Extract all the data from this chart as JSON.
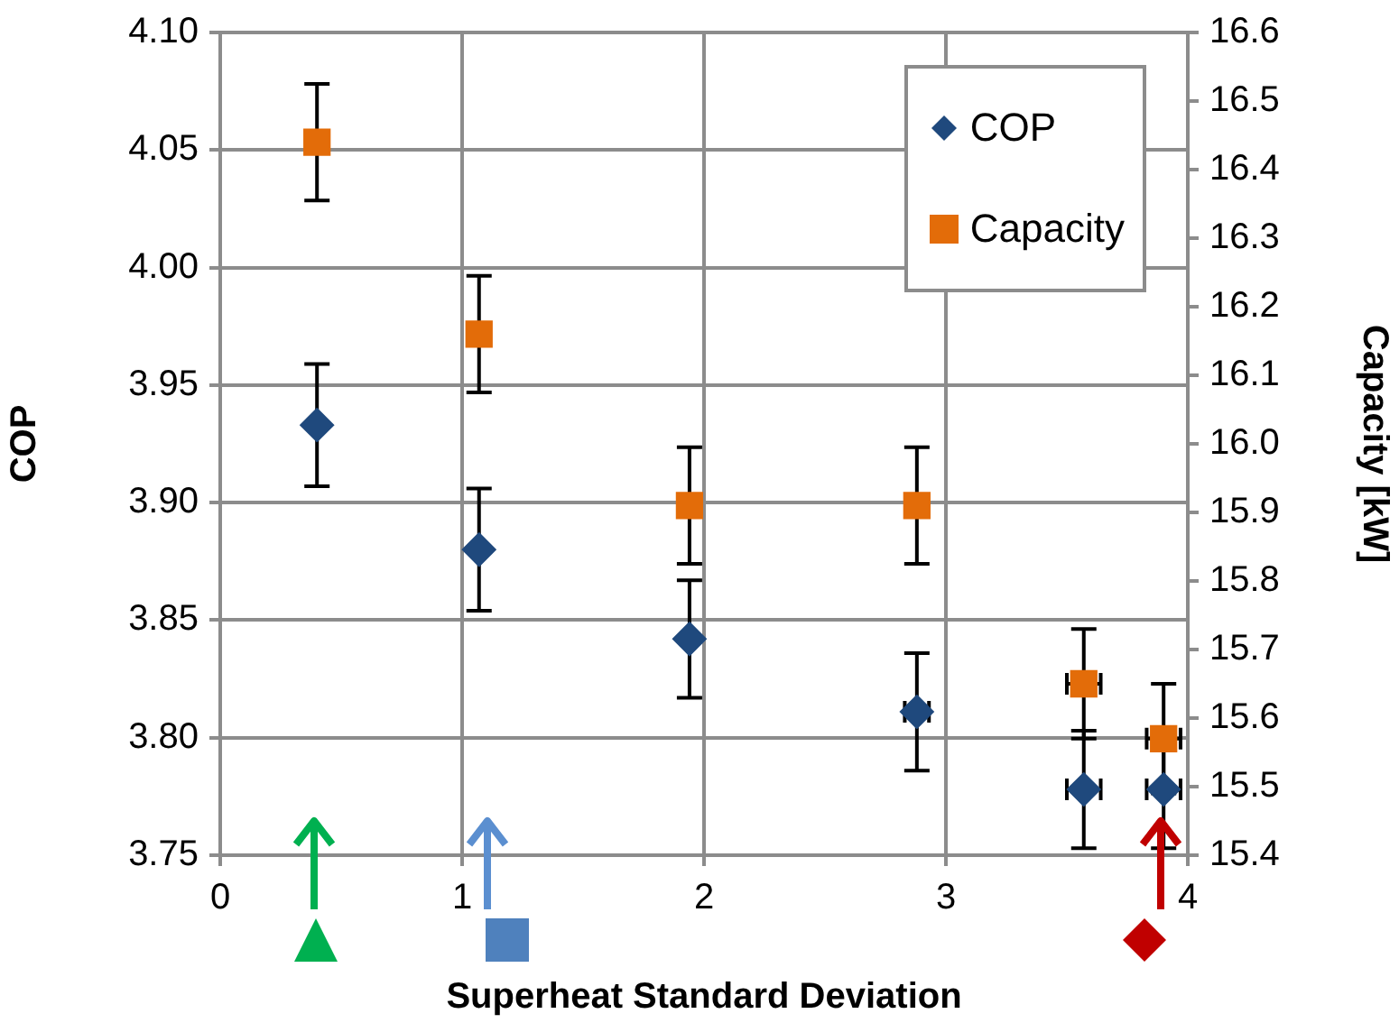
{
  "chart_data": {
    "type": "scatter",
    "xlabel": "Superheat Standard Deviation",
    "ylabel": "COP",
    "y2label": "Capacity [kW]",
    "x": [
      0.4,
      1.07,
      1.94,
      2.88,
      3.57,
      3.9
    ],
    "series": [
      {
        "name": "COP",
        "color": "#1f497d",
        "marker": "diamond",
        "values": [
          3.933,
          3.88,
          3.842,
          3.811,
          3.778,
          3.778
        ],
        "errors": [
          0.026,
          0.026,
          0.025,
          0.025,
          0.025,
          0.025
        ],
        "xerrors": [
          null,
          null,
          null,
          0.05,
          0.07,
          0.07
        ]
      },
      {
        "name": "Capacity",
        "color": "#e36c09",
        "marker": "square",
        "axis": "y2",
        "values": [
          16.44,
          16.16,
          15.91,
          15.91,
          15.65,
          15.57
        ],
        "errors": [
          0.085,
          0.085,
          0.085,
          0.085,
          0.08,
          0.08
        ],
        "xerrors": [
          null,
          null,
          null,
          null,
          0.07,
          0.07
        ]
      }
    ],
    "xlim": [
      0,
      4
    ],
    "xticks": [
      0,
      1,
      2,
      3,
      4
    ],
    "ylim": [
      3.75,
      4.1
    ],
    "yticks": [
      {
        "value": 3.75,
        "label": "3.75"
      },
      {
        "value": 3.8,
        "label": "3.80"
      },
      {
        "value": 3.85,
        "label": "3.85"
      },
      {
        "value": 3.9,
        "label": "3.90"
      },
      {
        "value": 3.95,
        "label": "3.95"
      },
      {
        "value": 4.0,
        "label": "4.00"
      },
      {
        "value": 4.05,
        "label": "4.05"
      },
      {
        "value": 4.1,
        "label": "4.10"
      }
    ],
    "y2lim": [
      15.4,
      16.6
    ],
    "y2ticks": [
      {
        "value": 15.4,
        "label": "15.4"
      },
      {
        "value": 15.5,
        "label": "15.5"
      },
      {
        "value": 15.6,
        "label": "15.6"
      },
      {
        "value": 15.7,
        "label": "15.7"
      },
      {
        "value": 15.8,
        "label": "15.8"
      },
      {
        "value": 15.9,
        "label": "15.9"
      },
      {
        "value": 16.0,
        "label": "16.0"
      },
      {
        "value": 16.1,
        "label": "16.1"
      },
      {
        "value": 16.2,
        "label": "16.2"
      },
      {
        "value": 16.3,
        "label": "16.3"
      },
      {
        "value": 16.4,
        "label": "16.4"
      },
      {
        "value": 16.5,
        "label": "16.5"
      },
      {
        "value": 16.6,
        "label": "16.6"
      }
    ],
    "grid": true,
    "legend": "top right"
  }
}
